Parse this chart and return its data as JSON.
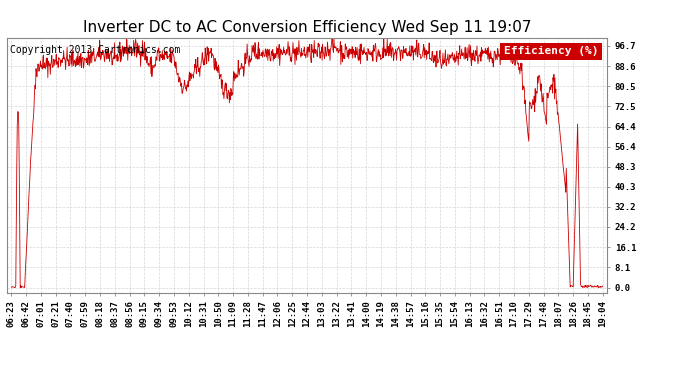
{
  "title": "Inverter DC to AC Conversion Efficiency Wed Sep 11 19:07",
  "copyright": "Copyright 2013 Cartronics.com",
  "legend_label": "Efficiency (%)",
  "legend_bg": "#cc0000",
  "legend_text_color": "#ffffff",
  "line_color": "#cc0000",
  "bg_color": "#ffffff",
  "plot_bg_color": "#ffffff",
  "grid_color": "#cccccc",
  "yticks": [
    0.0,
    8.1,
    16.1,
    24.2,
    32.2,
    40.3,
    48.3,
    56.4,
    64.4,
    72.5,
    80.5,
    88.6,
    96.7
  ],
  "ylim": [
    -2,
    100
  ],
  "xtick_labels": [
    "06:23",
    "06:42",
    "07:01",
    "07:21",
    "07:40",
    "07:59",
    "08:18",
    "08:37",
    "08:56",
    "09:15",
    "09:34",
    "09:53",
    "10:12",
    "10:31",
    "10:50",
    "11:09",
    "11:28",
    "11:47",
    "12:06",
    "12:25",
    "12:44",
    "13:03",
    "13:22",
    "13:41",
    "14:00",
    "14:19",
    "14:38",
    "14:57",
    "15:16",
    "15:35",
    "15:54",
    "16:13",
    "16:32",
    "16:51",
    "17:10",
    "17:29",
    "17:48",
    "18:07",
    "18:26",
    "18:45",
    "19:04"
  ],
  "title_fontsize": 11,
  "copyright_fontsize": 7,
  "tick_fontsize": 6.5,
  "legend_fontsize": 8
}
